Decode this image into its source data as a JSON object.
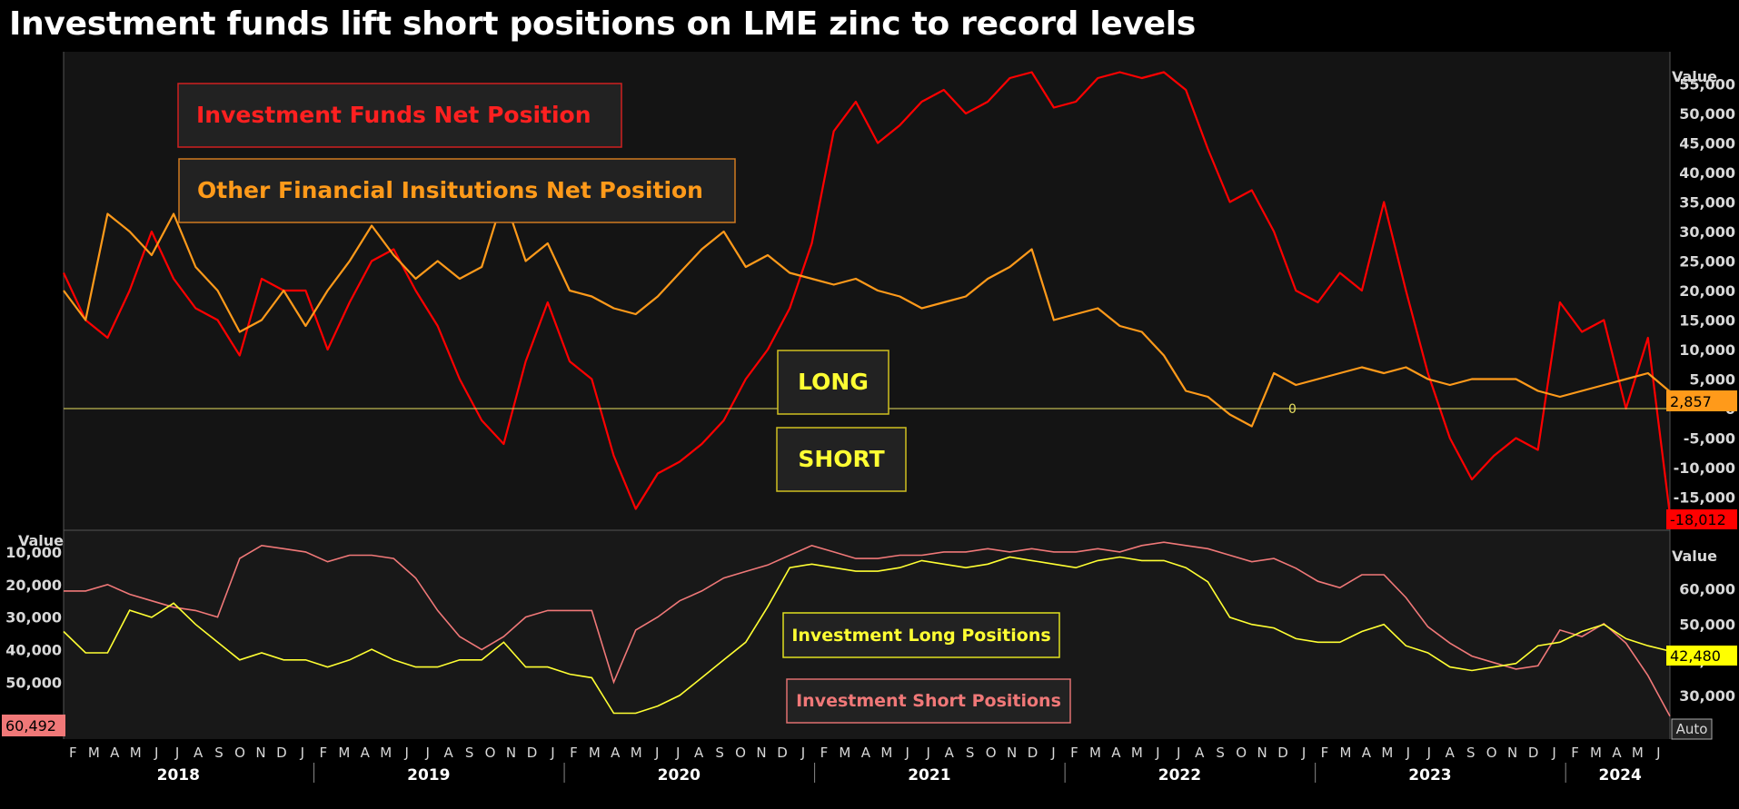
{
  "title": "Investment funds lift short positions on LME zinc to record levels",
  "colors": {
    "background": "#000000",
    "panel": "#181818",
    "funds": "#ff0000",
    "other": "#ff9a1a",
    "long": "#ffff33",
    "short": "#f07878",
    "zero_line": "#e8e060",
    "axis_text": "#d8d8d8"
  },
  "annotations": {
    "long_box": "LONG",
    "short_box": "SHORT",
    "zero_label": "0",
    "bottom_auto": "Auto"
  },
  "chart_data": [
    {
      "type": "line",
      "title": "",
      "y_axis_title": "Value",
      "ylim": [
        -20000,
        60000
      ],
      "yticks": [
        -15000,
        -10000,
        -5000,
        0,
        5000,
        10000,
        15000,
        20000,
        25000,
        30000,
        35000,
        40000,
        45000,
        50000,
        55000
      ],
      "ytick_labels": [
        "-15,000",
        "-10,000",
        "-5,000",
        "0",
        "5,000",
        "10,000",
        "15,000",
        "20,000",
        "25,000",
        "30,000",
        "35,000",
        "40,000",
        "45,000",
        "50,000",
        "55,000"
      ],
      "legend_placement": "top-left",
      "x": [
        "2018-01",
        "2018-02",
        "2018-03",
        "2018-04",
        "2018-05",
        "2018-06",
        "2018-07",
        "2018-08",
        "2018-09",
        "2018-10",
        "2018-11",
        "2018-12",
        "2019-01",
        "2019-02",
        "2019-03",
        "2019-04",
        "2019-05",
        "2019-06",
        "2019-07",
        "2019-08",
        "2019-09",
        "2019-10",
        "2019-11",
        "2019-12",
        "2020-01",
        "2020-02",
        "2020-03",
        "2020-04",
        "2020-05",
        "2020-06",
        "2020-07",
        "2020-08",
        "2020-09",
        "2020-10",
        "2020-11",
        "2020-12",
        "2021-01",
        "2021-02",
        "2021-03",
        "2021-04",
        "2021-05",
        "2021-06",
        "2021-07",
        "2021-08",
        "2021-09",
        "2021-10",
        "2021-11",
        "2021-12",
        "2022-01",
        "2022-02",
        "2022-03",
        "2022-04",
        "2022-05",
        "2022-06",
        "2022-07",
        "2022-08",
        "2022-09",
        "2022-10",
        "2022-11",
        "2022-12",
        "2023-01",
        "2023-02",
        "2023-03",
        "2023-04",
        "2023-05",
        "2023-06",
        "2023-07",
        "2023-08",
        "2023-09",
        "2023-10",
        "2023-11",
        "2023-12",
        "2024-01",
        "2024-02"
      ],
      "series": [
        {
          "name": "Investment Funds Net Position",
          "last_value_label": "-18,012",
          "values": [
            23000,
            15000,
            12000,
            20000,
            30000,
            22000,
            17000,
            15000,
            9000,
            22000,
            20000,
            20000,
            10000,
            18000,
            25000,
            27000,
            20000,
            14000,
            5000,
            -2000,
            -6000,
            8000,
            18000,
            8000,
            5000,
            -8000,
            -17000,
            -11000,
            -9000,
            -6000,
            -2000,
            5000,
            10000,
            17000,
            28000,
            47000,
            52000,
            45000,
            48000,
            52000,
            54000,
            50000,
            52000,
            56000,
            57000,
            51000,
            52000,
            56000,
            57000,
            56000,
            57000,
            54000,
            44000,
            35000,
            37000,
            30000,
            20000,
            18000,
            23000,
            20000,
            35000,
            20000,
            6000,
            -5000,
            -12000,
            -8000,
            -5000,
            -7000,
            18000,
            13000,
            15000,
            0,
            12000,
            -18012
          ]
        },
        {
          "name": "Other Financial Insitutions Net Position",
          "last_value_label": "2,857",
          "values": [
            20000,
            15000,
            33000,
            30000,
            26000,
            33000,
            24000,
            20000,
            13000,
            15000,
            20000,
            14000,
            20000,
            25000,
            31000,
            26000,
            22000,
            25000,
            22000,
            24000,
            36000,
            25000,
            28000,
            20000,
            19000,
            17000,
            16000,
            19000,
            23000,
            27000,
            30000,
            24000,
            26000,
            23000,
            22000,
            21000,
            22000,
            20000,
            19000,
            17000,
            18000,
            19000,
            22000,
            24000,
            27000,
            15000,
            16000,
            17000,
            14000,
            13000,
            9000,
            3000,
            2000,
            -1000,
            -3000,
            6000,
            4000,
            5000,
            6000,
            7000,
            6000,
            7000,
            5000,
            4000,
            5000,
            5000,
            5000,
            3000,
            2000,
            3000,
            4000,
            5000,
            6000,
            2857
          ]
        }
      ]
    },
    {
      "type": "line",
      "title": "",
      "y_axis_title_left": "Value",
      "y_axis_title_right": "Value",
      "ylim_left": [
        65000,
        5000
      ],
      "ylim_right": [
        20000,
        75000
      ],
      "yticks_left": [
        10000,
        20000,
        30000,
        40000,
        50000
      ],
      "ytick_labels_left": [
        "10,000",
        "20,000",
        "30,000",
        "40,000",
        "50,000"
      ],
      "yticks_right": [
        30000,
        40000,
        50000,
        60000
      ],
      "ytick_labels_right": [
        "30,000",
        "40,000",
        "50,000",
        "60,000"
      ],
      "legend_placement": "center",
      "x": [
        "2018-01",
        "2018-02",
        "2018-03",
        "2018-04",
        "2018-05",
        "2018-06",
        "2018-07",
        "2018-08",
        "2018-09",
        "2018-10",
        "2018-11",
        "2018-12",
        "2019-01",
        "2019-02",
        "2019-03",
        "2019-04",
        "2019-05",
        "2019-06",
        "2019-07",
        "2019-08",
        "2019-09",
        "2019-10",
        "2019-11",
        "2019-12",
        "2020-01",
        "2020-02",
        "2020-03",
        "2020-04",
        "2020-05",
        "2020-06",
        "2020-07",
        "2020-08",
        "2020-09",
        "2020-10",
        "2020-11",
        "2020-12",
        "2021-01",
        "2021-02",
        "2021-03",
        "2021-04",
        "2021-05",
        "2021-06",
        "2021-07",
        "2021-08",
        "2021-09",
        "2021-10",
        "2021-11",
        "2021-12",
        "2022-01",
        "2022-02",
        "2022-03",
        "2022-04",
        "2022-05",
        "2022-06",
        "2022-07",
        "2022-08",
        "2022-09",
        "2022-10",
        "2022-11",
        "2022-12",
        "2023-01",
        "2023-02",
        "2023-03",
        "2023-04",
        "2023-05",
        "2023-06",
        "2023-07",
        "2023-08",
        "2023-09",
        "2023-10",
        "2023-11",
        "2023-12",
        "2024-01",
        "2024-02"
      ],
      "series": [
        {
          "name": "Investment Long Positions",
          "axis": "right",
          "last_value_label": "42,480",
          "values": [
            48000,
            42000,
            42000,
            54000,
            52000,
            56000,
            50000,
            45000,
            40000,
            42000,
            40000,
            40000,
            38000,
            40000,
            43000,
            40000,
            38000,
            38000,
            40000,
            40000,
            45000,
            38000,
            38000,
            36000,
            35000,
            25000,
            25000,
            27000,
            30000,
            35000,
            40000,
            45000,
            55000,
            66000,
            67000,
            66000,
            65000,
            65000,
            66000,
            68000,
            67000,
            66000,
            67000,
            69000,
            68000,
            67000,
            66000,
            68000,
            69000,
            68000,
            68000,
            66000,
            62000,
            52000,
            50000,
            49000,
            46000,
            45000,
            45000,
            48000,
            50000,
            44000,
            42000,
            38000,
            37000,
            38000,
            39000,
            44000,
            45000,
            48000,
            50000,
            46000,
            44000,
            42480
          ]
        },
        {
          "name": "Investment Short Positions",
          "axis": "left",
          "last_value_label": "60,492",
          "values": [
            22000,
            22000,
            20000,
            23000,
            25000,
            27000,
            28000,
            30000,
            12000,
            8000,
            9000,
            10000,
            13000,
            11000,
            11000,
            12000,
            18000,
            28000,
            36000,
            40000,
            36000,
            30000,
            28000,
            28000,
            28000,
            50000,
            34000,
            30000,
            25000,
            22000,
            18000,
            16000,
            14000,
            11000,
            8000,
            10000,
            12000,
            12000,
            11000,
            11000,
            10000,
            10000,
            9000,
            10000,
            9000,
            10000,
            10000,
            9000,
            10000,
            8000,
            7000,
            8000,
            9000,
            11000,
            13000,
            12000,
            15000,
            19000,
            21000,
            17000,
            17000,
            24000,
            33000,
            38000,
            42000,
            44000,
            46000,
            45000,
            34000,
            36000,
            32000,
            38000,
            48000,
            60492
          ]
        }
      ]
    }
  ],
  "x_axis": {
    "month_letters": [
      "F",
      "M",
      "A",
      "M",
      "J",
      "J",
      "A",
      "S",
      "O",
      "N",
      "D",
      "J",
      "F",
      "M",
      "A",
      "M",
      "J",
      "J",
      "A",
      "S",
      "O",
      "N",
      "D",
      "J",
      "F",
      "M",
      "A",
      "M",
      "J",
      "J",
      "A",
      "S",
      "O",
      "N",
      "D",
      "J",
      "F",
      "M",
      "A",
      "M",
      "J",
      "J",
      "A",
      "S",
      "O",
      "N",
      "D",
      "J",
      "F",
      "M",
      "A",
      "M",
      "J",
      "J",
      "A",
      "S",
      "O",
      "N",
      "D",
      "J",
      "F",
      "M",
      "A",
      "M",
      "J",
      "J",
      "A",
      "S",
      "O",
      "N",
      "D",
      "J",
      "F",
      "M",
      "A",
      "M",
      "J"
    ],
    "years": [
      "2018",
      "2019",
      "2020",
      "2021",
      "2022",
      "2023",
      "2024"
    ]
  }
}
